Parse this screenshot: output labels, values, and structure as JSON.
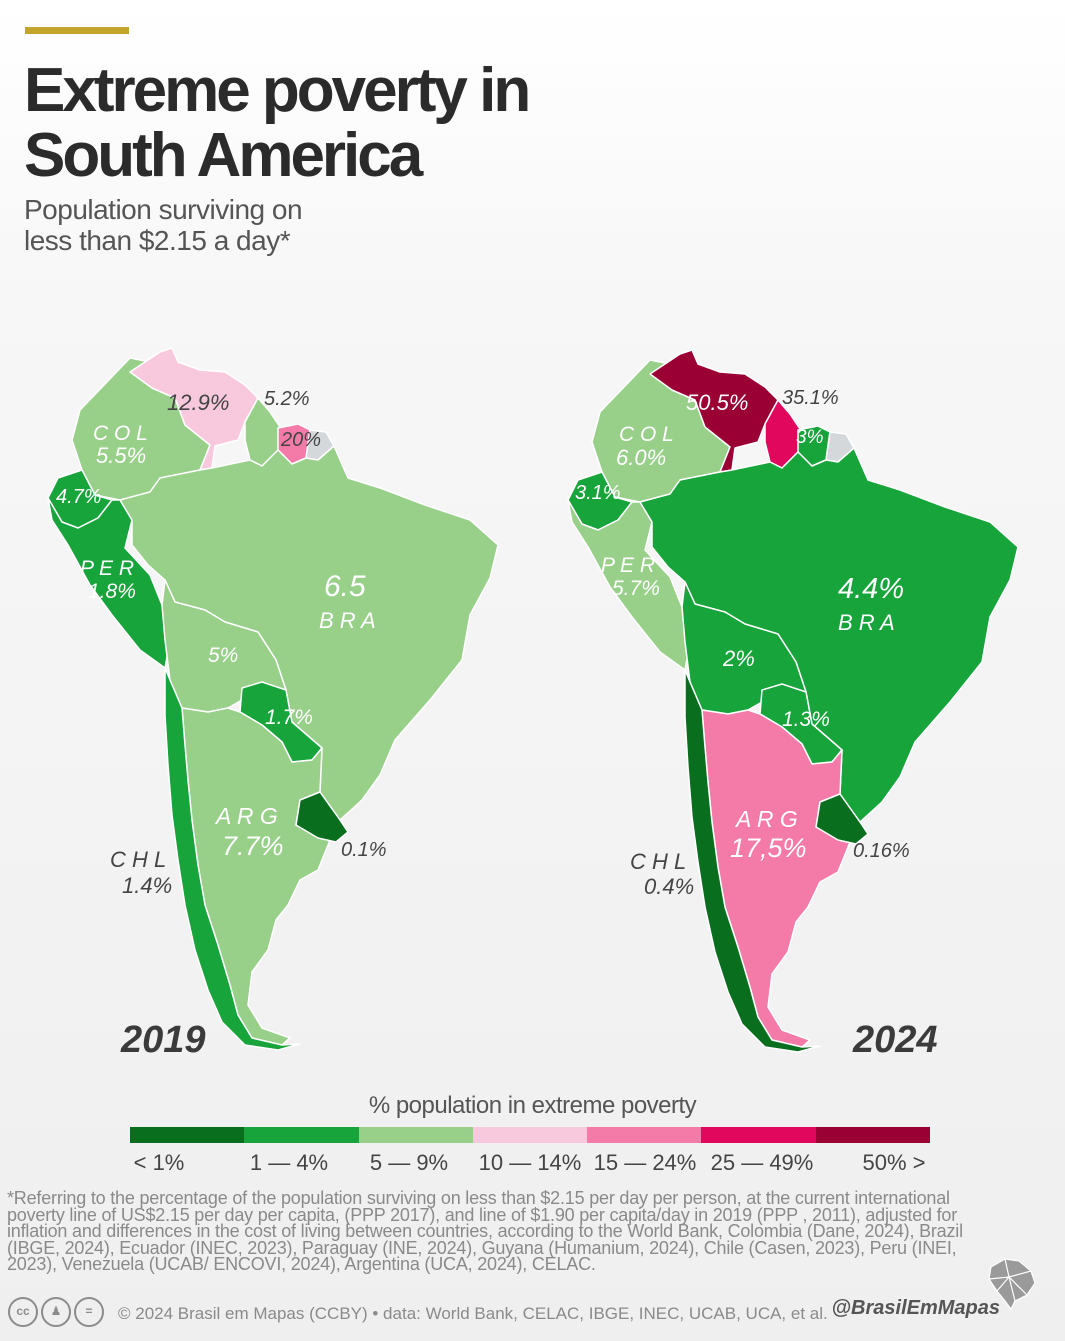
{
  "header": {
    "title_line1": "Extreme poverty in",
    "title_line2": "South America",
    "subtitle_line1": "Population surviving on",
    "subtitle_line2": "less than $2.15 a day*",
    "accent_color": "#c2a52a"
  },
  "colors": {
    "lt1": "#0a6e1f",
    "r1_4": "#17a43b",
    "r5_9": "#98d08a",
    "r10_14": "#f8c9dc",
    "r15_24": "#f47aa7",
    "r25_49": "#e0075c",
    "r50": "#9b0034",
    "nodata": "#d4d8db"
  },
  "maps": [
    {
      "year": "2019",
      "labels": {
        "ven": "12.9%",
        "guy": "5.2%",
        "sur": "20%",
        "col_name": "C O L",
        "col_val": "5.5%",
        "ecu": "4.7%",
        "per_name": "P E R",
        "per_val": "1.8%",
        "bra_val": "6.5",
        "bra_name": "B R A",
        "bol": "5%",
        "pry": "1.7%",
        "arg_name": "A R G",
        "arg_val": "7.7%",
        "ury": "0.1%",
        "chl_name": "C H L",
        "chl_val": "1.4%"
      },
      "fills": {
        "ven": "r10_14",
        "guy": "r5_9",
        "sur": "r15_24",
        "gf": "nodata",
        "col": "r5_9",
        "ecu": "r1_4",
        "per": "r1_4",
        "bra": "r5_9",
        "bol": "r5_9",
        "pry": "r1_4",
        "arg": "r5_9",
        "ury": "lt1",
        "chl": "r1_4"
      }
    },
    {
      "year": "2024",
      "labels": {
        "ven": "50.5%",
        "guy": "35.1%",
        "sur": "3%",
        "col_name": "C O L",
        "col_val": "6.0%",
        "ecu": "3.1%",
        "per_name": "P E R",
        "per_val": "5.7%",
        "bra_val": "4.4%",
        "bra_name": "B R A",
        "bol": "2%",
        "pry": "1.3%",
        "arg_name": "A R G",
        "arg_val": "17,5%",
        "ury": "0.16%",
        "chl_name": "C H L",
        "chl_val": "0.4%"
      },
      "fills": {
        "ven": "r50",
        "guy": "r25_49",
        "sur": "r1_4",
        "gf": "nodata",
        "col": "r5_9",
        "ecu": "r1_4",
        "per": "r5_9",
        "bra": "r1_4",
        "bol": "r1_4",
        "pry": "r1_4",
        "arg": "r15_24",
        "ury": "lt1",
        "chl": "lt1"
      }
    }
  ],
  "legend": {
    "title": "% population in extreme poverty",
    "items": [
      {
        "label": "< 1%",
        "color": "#0a6e1f"
      },
      {
        "label": "1 — 4%",
        "color": "#17a43b"
      },
      {
        "label": "5 — 9%",
        "color": "#98d08a"
      },
      {
        "label": "10 — 14%",
        "color": "#f8c9dc"
      },
      {
        "label": "15 — 24%",
        "color": "#f47aa7"
      },
      {
        "label": "25 — 49%",
        "color": "#e0075c"
      },
      {
        "label": "50% >",
        "color": "#9b0034"
      }
    ]
  },
  "footnote": "*Referring to the percentage of the population surviving on less than $2.15 per day per person, at the current international poverty line of US$2.15 per day per capita, (PPP 2017), and line of $1.90 per capita/day in 2019 (PPP , 2011), adjusted for inflation and differences in the cost of living between countries, according to the World Bank, Colombia (Dane, 2024), Brazil (IBGE, 2024), Ecuador (INEC, 2023), Paraguay (INE, 2024), Guyana (Humanium, 2024), Chile (Casen, 2023), Peru (INEI, 2023), Venezuela (UCAB/ ENCOVI, 2024), Argentina (UCA, 2024), CELAC.",
  "footer": {
    "license_icons": [
      "cc",
      "by",
      "eq"
    ],
    "credit": "© 2024 Brasil em Mapas (CCBY) • data: World Bank, CELAC, IBGE, INEC, UCAB, UCA, et al.",
    "handle": "@BrasilEmMapas"
  }
}
